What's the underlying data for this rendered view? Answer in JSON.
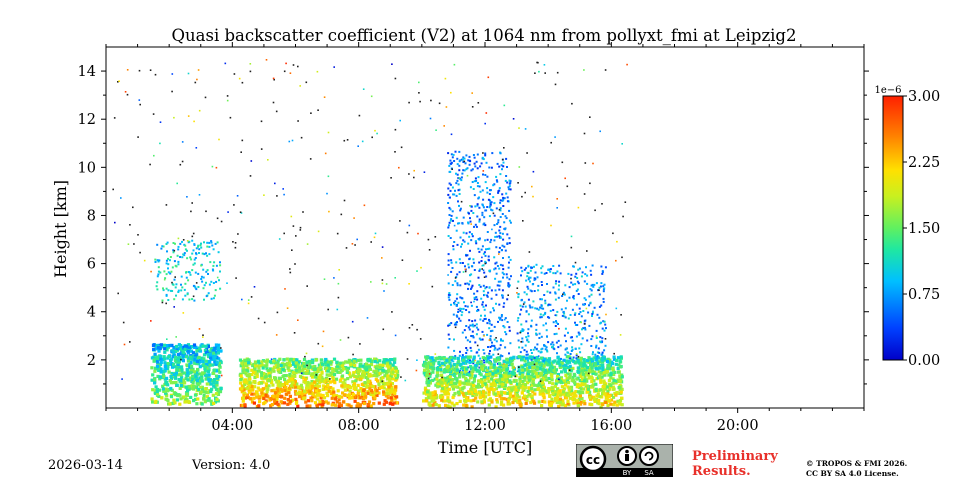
{
  "chart_data": {
    "type": "heatmap",
    "title": "Quasi backscatter coefficient (V2) at 1064 nm from pollyxt_fmi at Leipzig2",
    "xlabel": "Time [UTC]",
    "ylabel": "Height [km]",
    "xlim_hours": [
      0,
      24
    ],
    "ylim_km": [
      0,
      15
    ],
    "x_ticks": [
      {
        "value": 4,
        "label": "04:00"
      },
      {
        "value": 8,
        "label": "08:00"
      },
      {
        "value": 12,
        "label": "12:00"
      },
      {
        "value": 16,
        "label": "16:00"
      },
      {
        "value": 20,
        "label": "20:00"
      }
    ],
    "y_ticks": [
      {
        "value": 2,
        "label": "2"
      },
      {
        "value": 4,
        "label": "4"
      },
      {
        "value": 6,
        "label": "6"
      },
      {
        "value": 8,
        "label": "8"
      },
      {
        "value": 10,
        "label": "10"
      },
      {
        "value": 12,
        "label": "12"
      },
      {
        "value": 14,
        "label": "14"
      }
    ],
    "colorbar": {
      "range": [
        0.0,
        3.0
      ],
      "multiplier": "1e−6",
      "ticks": [
        {
          "value": 0.0,
          "label": "0.00"
        },
        {
          "value": 0.75,
          "label": "0.75"
        },
        {
          "value": 1.5,
          "label": "1.50"
        },
        {
          "value": 2.25,
          "label": "2.25"
        },
        {
          "value": 3.0,
          "label": "3.00"
        }
      ],
      "colormap": "jet"
    },
    "features": [
      {
        "name": "aerosol-layer-early",
        "t_start": 1.4,
        "t_end": 3.6,
        "h_bottom": 0.2,
        "h_top": 2.7,
        "value": 1.6
      },
      {
        "name": "boundary-layer-morning",
        "t_start": 4.2,
        "t_end": 9.2,
        "h_bottom": 0.1,
        "h_top": 2.1,
        "value": 2.5
      },
      {
        "name": "elevated-layer-night",
        "t_start": 1.5,
        "t_end": 3.6,
        "h_bottom": 4.5,
        "h_top": 7.0,
        "value": 1.0
      },
      {
        "name": "cloud-noon",
        "t_start": 10.8,
        "t_end": 12.8,
        "h_bottom": 1.5,
        "h_top": 10.7,
        "value": 0.6
      },
      {
        "name": "boundary-layer-afternoon",
        "t_start": 10.0,
        "t_end": 16.3,
        "h_bottom": 0.1,
        "h_top": 2.2,
        "value": 2.1
      },
      {
        "name": "elevated-layer-afternoon",
        "t_start": 13.0,
        "t_end": 15.8,
        "h_bottom": 2.0,
        "h_top": 6.0,
        "value": 0.7
      }
    ]
  },
  "footer": {
    "date": "2026-03-14",
    "version": "Version: 4.0",
    "preliminary_line1": "Preliminary",
    "preliminary_line2": "Results.",
    "copyright_line1": "© TROPOS & FMI 2026.",
    "copyright_line2": "CC BY SA 4.0 License.",
    "license_badge_label1": "BY",
    "license_badge_label2": "SA"
  }
}
